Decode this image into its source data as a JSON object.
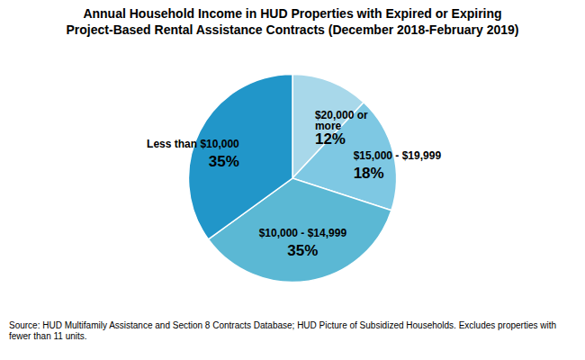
{
  "chart_data": {
    "type": "pie",
    "title": "Annual Household Income in HUD Properties with Expired or Expiring",
    "subtitle": "Project-Based Rental Assistance Contracts (December 2018-February 2019)",
    "categories": [
      "$20,000 or\nmore",
      "$15,000 - $19,999",
      "$10,000 - $14,999",
      "Less than $10,000"
    ],
    "values": [
      12,
      18,
      35,
      35
    ],
    "value_labels": [
      "12%",
      "18%",
      "35%",
      "35%"
    ],
    "data_labels": true,
    "colors": [
      "#A8D8EA",
      "#7EC8E3",
      "#5BB8D4",
      "#2196C9"
    ],
    "source": "Source: HUD Multifamily Assistance and Section 8 Contracts Database; HUD Picture of Subsidized Households. Excludes properties with fewer than 11 units."
  }
}
